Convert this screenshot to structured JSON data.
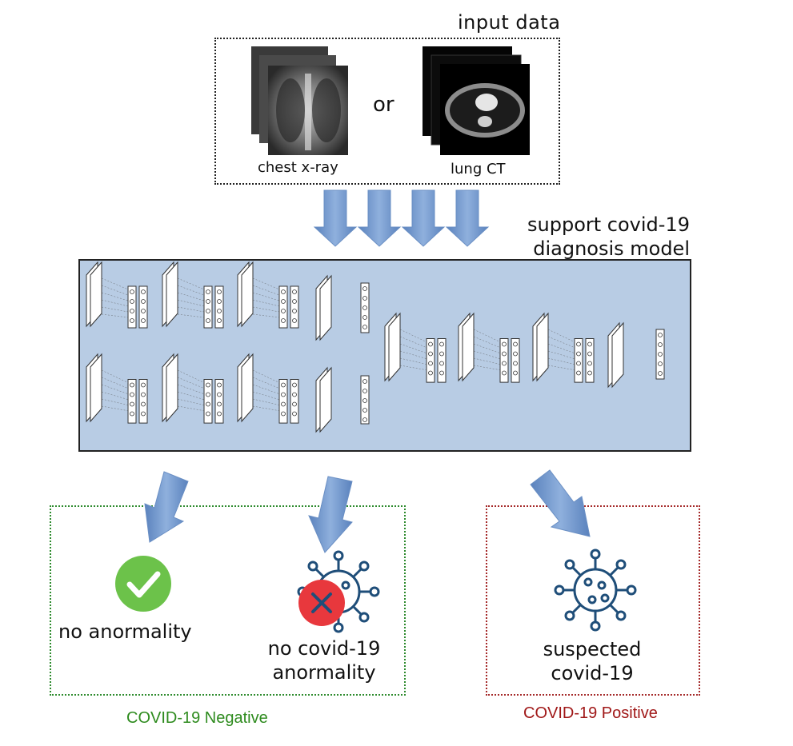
{
  "input": {
    "title": "input data",
    "xray_label": "chest x-ray",
    "or_label": "or",
    "ct_label": "lung CT"
  },
  "model": {
    "title": "support covid-19 diagnosis model"
  },
  "outputs": {
    "no_anormality": "no anormality",
    "no_covid_anormality": "no covid-19 anormality",
    "suspected": "suspected covid-19",
    "negative_label": "COVID-19 Negative",
    "positive_label": "COVID-19 Positive"
  },
  "colors": {
    "arrow": "#6f96cc",
    "model_fill": "#b8cce4",
    "negative": "#2e8b1e",
    "positive": "#a01818",
    "check": "#6cc24a",
    "cross": "#e8383d",
    "virus": "#1f4e79"
  }
}
